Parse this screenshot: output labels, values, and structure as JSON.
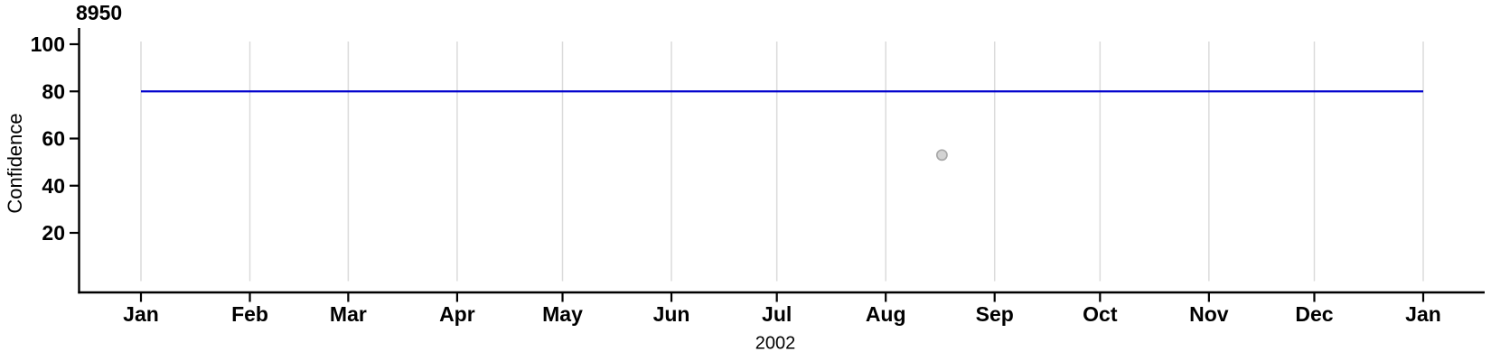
{
  "chart_data": {
    "type": "line",
    "title": "8950",
    "xlabel": "2002",
    "ylabel": "Confidence",
    "x_axis": {
      "tick_labels": [
        "Jan",
        "Feb",
        "Mar",
        "Apr",
        "May",
        "Jun",
        "Jul",
        "Aug",
        "Sep",
        "Oct",
        "Nov",
        "Dec",
        "Jan"
      ],
      "year": "2002",
      "range_days": [
        0,
        365
      ]
    },
    "y_axis": {
      "tick_values": [
        20,
        40,
        60,
        80,
        100
      ],
      "tick_labels": [
        "20",
        "40",
        "60",
        "80",
        "100"
      ],
      "range": [
        0,
        107
      ]
    },
    "grid": {
      "vertical": true,
      "horizontal": false,
      "color": "#dbdbdb"
    },
    "series": [
      {
        "name": "confidence-threshold-line",
        "type": "hline",
        "value": 80,
        "start_day": 0,
        "end_day": 365,
        "color": "#0000cd"
      },
      {
        "name": "observation-point",
        "type": "point",
        "day_of_year": 228,
        "month_label": "Aug",
        "value": 53,
        "fill": "#d3d3d3",
        "stroke": "#a9a9a9"
      }
    ],
    "axis_color": "#000000",
    "text_color": "#000000",
    "background_color": "#ffffff"
  }
}
